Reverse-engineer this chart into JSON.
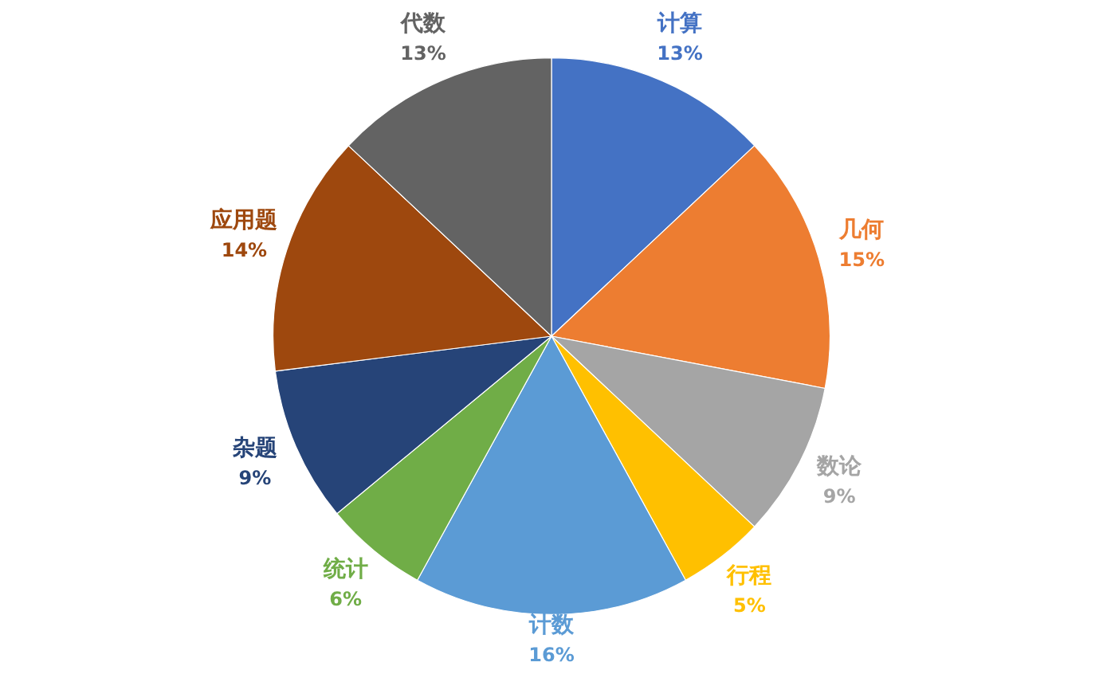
{
  "chart_data": {
    "type": "pie",
    "categories": [
      "计算",
      "几何",
      "数论",
      "行程",
      "计数",
      "统计",
      "杂题",
      "应用题",
      "代数"
    ],
    "values": [
      13,
      15,
      9,
      5,
      16,
      6,
      9,
      14,
      13
    ],
    "value_labels": [
      "13%",
      "15%",
      "9%",
      "5%",
      "16%",
      "6%",
      "9%",
      "14%",
      "13%"
    ],
    "colors": [
      "#4472c4",
      "#ed7d31",
      "#a5a5a5",
      "#ffc000",
      "#5b9bd5",
      "#70ad47",
      "#264478",
      "#9e480e",
      "#636363"
    ],
    "legend": false
  }
}
